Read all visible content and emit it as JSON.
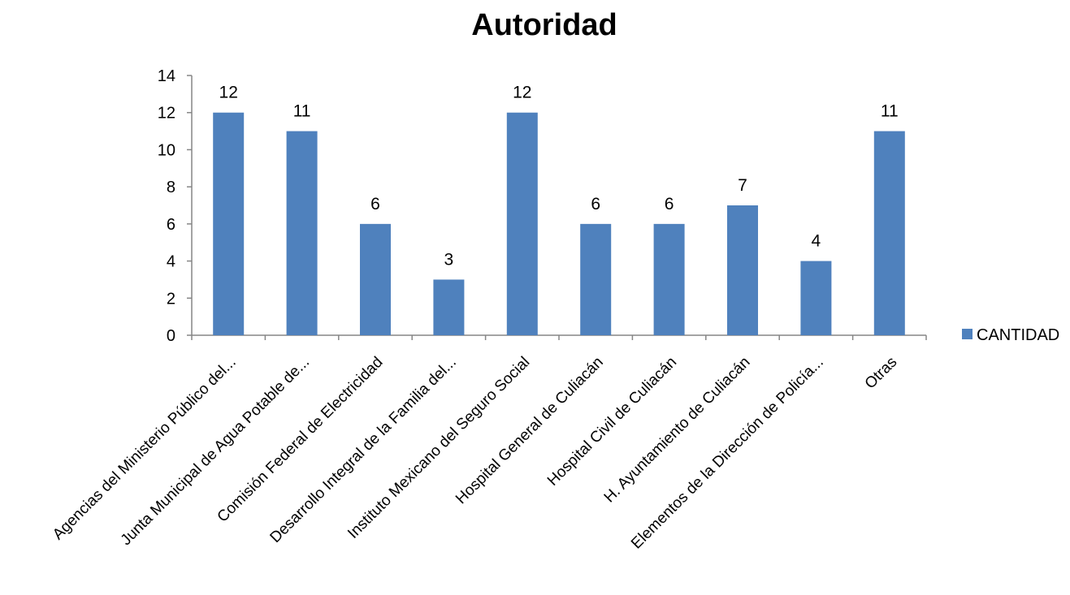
{
  "chart_data": {
    "type": "bar",
    "title": "Autoridad",
    "categories": [
      "Agencias del Ministerio Público del...",
      "Junta Municipal de Agua Potable de...",
      "Comisión Federal de Electricidad",
      "Desarrollo Integral de la Familia del...",
      "Instituto  Mexicano del Seguro Social",
      "Hospital General de Culiacán",
      "Hospital Civil de Culiacán",
      "H. Ayuntamiento de Culiacán",
      "Elementos de la Dirección de Policía...",
      "Otras"
    ],
    "series": [
      {
        "name": "CANTIDAD",
        "values": [
          12,
          11,
          6,
          3,
          12,
          6,
          6,
          7,
          4,
          11
        ]
      }
    ],
    "ylim": [
      0,
      14
    ],
    "yticks": [
      "0",
      "2",
      "4",
      "6",
      "8",
      "10",
      "12",
      "14"
    ],
    "grid": false,
    "legend": "right",
    "colors": {
      "bar": "#4f81bd",
      "axis": "#868686"
    }
  }
}
